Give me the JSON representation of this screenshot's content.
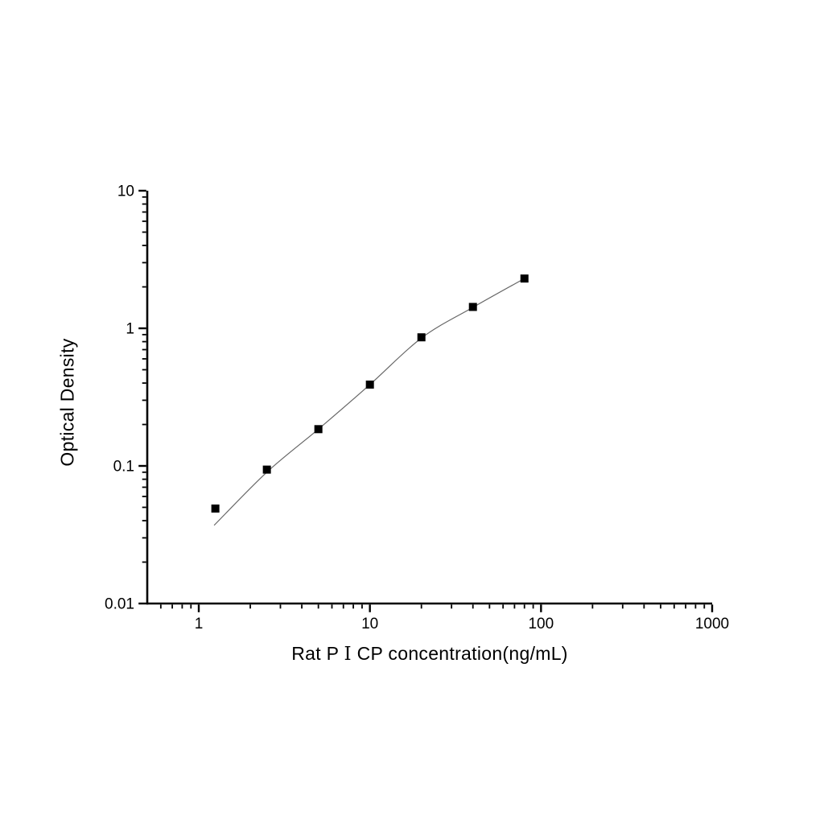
{
  "chart_data": {
    "type": "scatter",
    "title": "",
    "xlabel": "Rat P Ⅰ CP concentration(ng/mL)",
    "xlabel_parts": {
      "prefix": "Rat P ",
      "numeral": "Ⅰ",
      "suffix": " CP concentration(ng/mL)"
    },
    "ylabel": "Optical Density",
    "x_scale": "log",
    "y_scale": "log",
    "xlim": [
      0.5,
      1000
    ],
    "ylim": [
      0.01,
      10
    ],
    "grid": false,
    "legend": null,
    "x_major_ticks": [
      1,
      10,
      100,
      1000
    ],
    "x_tick_labels": [
      "1",
      "10",
      "100",
      "1000"
    ],
    "y_major_ticks": [
      0.01,
      0.1,
      1,
      10
    ],
    "y_tick_labels": [
      "0.01",
      "0.1",
      "1",
      "10"
    ],
    "series": [
      {
        "name": "standard-points",
        "role": "data-points",
        "marker": "filled-square",
        "x": [
          1.25,
          2.5,
          5,
          10,
          20,
          40,
          80
        ],
        "y": [
          0.049,
          0.094,
          0.185,
          0.39,
          0.86,
          1.43,
          2.3
        ]
      },
      {
        "name": "fit-curve",
        "role": "fitted-line",
        "marker": "none",
        "x": [
          1.23,
          2.5,
          5,
          10,
          20,
          40,
          80
        ],
        "y": [
          0.037,
          0.09,
          0.185,
          0.39,
          0.85,
          1.42,
          2.3
        ]
      }
    ],
    "style": {
      "background_color": "#ffffff",
      "axis_color": "#000000",
      "tick_label_color": "#000000",
      "marker_color": "#000000",
      "curve_color": "#666666",
      "marker_size_px": 10,
      "tick_label_font_px": 19
    }
  }
}
